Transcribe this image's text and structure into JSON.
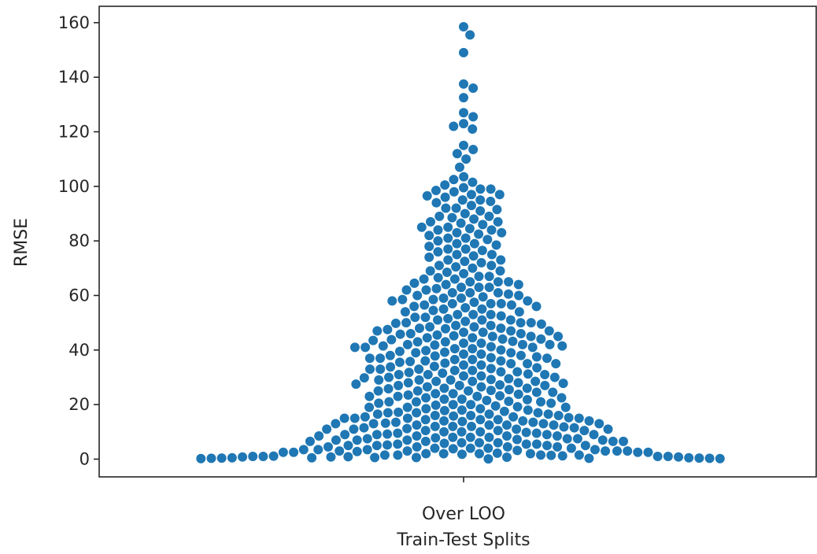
{
  "chart_data": {
    "type": "scatter",
    "subtype": "swarm",
    "title": "",
    "xlabel_lines": [
      "Over LOO",
      "Train-Test Splits"
    ],
    "ylabel": "RMSE",
    "categories": [
      "Over LOO"
    ],
    "y_ticks": [
      0,
      20,
      40,
      60,
      80,
      100,
      120,
      140,
      160
    ],
    "ylim": [
      -6.5,
      166
    ],
    "grid": false,
    "legend": "none",
    "color": "#1f77b4",
    "series": [
      {
        "category": "Over LOO",
        "values": [
          158.5,
          155.5,
          149.0,
          137.5,
          136.0,
          132.5,
          127.0,
          125.5,
          123.0,
          122.0,
          121.0,
          115.0,
          113.5,
          112.0,
          110.0,
          107.0,
          103.5,
          102.5,
          101.5,
          100.5,
          99.5,
          99.0,
          98.0,
          97.0,
          96.0,
          95.0,
          94.0,
          93.0,
          92.0,
          91.0,
          90.0,
          89.0,
          88.0,
          87.0,
          86.0,
          85.0,
          84.0,
          84.0,
          83.0,
          82.0,
          81.0,
          80.0,
          79.0,
          78.0,
          77.0,
          76.0,
          75.0,
          74.0,
          73.0,
          72.0,
          71.0,
          70.0,
          69.0,
          68.0,
          67.0,
          66.0,
          65.0,
          64.0,
          63.0,
          62.0,
          61.0,
          60.0,
          59.5,
          59.0,
          58.5,
          58.0,
          57.5,
          57.0,
          56.5,
          56.0,
          55.5,
          55.0,
          54.0,
          53.0,
          52.0,
          51.0,
          50.0,
          49.5,
          49.0,
          48.5,
          48.0,
          47.5,
          47.0,
          46.5,
          46.0,
          45.5,
          45.0,
          44.5,
          44.0,
          43.5,
          43.0,
          42.5,
          42.0,
          42.0,
          42.0,
          41.5,
          41.5,
          41.0,
          41.0,
          40.5,
          40.0,
          39.5,
          39.0,
          38.5,
          38.0,
          37.5,
          37.0,
          36.5,
          36.0,
          35.5,
          35.0,
          34.5,
          34.0,
          33.5,
          33.0,
          32.5,
          32.0,
          31.5,
          31.0,
          30.5,
          30.0,
          29.5,
          29.0,
          29.0,
          28.5,
          28.0,
          27.5,
          27.0,
          26.5,
          26.0,
          25.5,
          25.0,
          24.5,
          24.0,
          23.5,
          23.0,
          22.5,
          22.0,
          21.5,
          21.0,
          20.5,
          20.0,
          19.5,
          19.0,
          18.5,
          18.0,
          17.5,
          17.0,
          17.0,
          16.5,
          16.5,
          16.0,
          16.0,
          15.5,
          15.5,
          15.0,
          15.0,
          14.5,
          14.5,
          14.0,
          14.0,
          13.5,
          13.5,
          13.0,
          13.0,
          12.5,
          12.5,
          12.0,
          12.0,
          11.5,
          11.5,
          11.0,
          11.0,
          10.5,
          10.5,
          10.0,
          10.0,
          9.5,
          9.5,
          9.0,
          9.0,
          8.5,
          8.5,
          8.0,
          8.0,
          7.5,
          7.5,
          7.0,
          7.0,
          6.5,
          6.5,
          6.0,
          6.0,
          5.5,
          5.5,
          5.0,
          5.0,
          4.5,
          4.5,
          4.0,
          4.0,
          4.0,
          3.5,
          3.5,
          3.5,
          3.0,
          3.0,
          3.0,
          2.5,
          2.5,
          2.5,
          2.0,
          2.0,
          2.0,
          1.5,
          1.5,
          1.5,
          1.0,
          1.0,
          1.0,
          0.8,
          0.8,
          0.6,
          0.6,
          0.5,
          0.5,
          0.4,
          0.4,
          0.3,
          0.3,
          0.2,
          0.2,
          60.0,
          58.0,
          47.0,
          46.0,
          28.5,
          28.0,
          25.0,
          24.0,
          23.0,
          22.0,
          19.0,
          18.0,
          12.5,
          12.0,
          8.0,
          7.5,
          5.0,
          4.5,
          3.5,
          3.0,
          66.0,
          65.0,
          64.0,
          63.0,
          62.0,
          61.0,
          57.0,
          56.0,
          54.0,
          53.0,
          51.0,
          50.0,
          45.0,
          44.0,
          38.0,
          37.0,
          36.0,
          35.0,
          33.0,
          32.0,
          31.0,
          30.0,
          27.0,
          26.0,
          21.0,
          20.0,
          16.0,
          15.0,
          14.0,
          13.0,
          11.0,
          10.0,
          9.0,
          8.5,
          7.0,
          6.5,
          6.0,
          5.5,
          4.0,
          2.0,
          99.0,
          98.5,
          97.0,
          96.5,
          95.0,
          94.5,
          92.0,
          91.5,
          89.0,
          88.5,
          87.0,
          86.5,
          85.0,
          84.5,
          83.0,
          82.5,
          81.0,
          80.5,
          79.0,
          78.5,
          77.0,
          76.5,
          75.0,
          74.5,
          73.0,
          72.5,
          71.0,
          70.5,
          69.0,
          68.5,
          67.0,
          66.5,
          65.0,
          64.5,
          63.0,
          62.5,
          61.0,
          60.5,
          59.0,
          58.5,
          57.0,
          56.5,
          55.0,
          54.5,
          53.0,
          52.5,
          51.0,
          50.5,
          49.0,
          48.5,
          47.0,
          46.5,
          45.0,
          44.5,
          43.0,
          42.5,
          41.0,
          40.5,
          39.0,
          38.5,
          37.0,
          36.5,
          35.0,
          34.5,
          33.0,
          32.5,
          31.0,
          30.5,
          29.0,
          28.5,
          27.0,
          26.5,
          25.0,
          24.5,
          23.0,
          22.5,
          21.0,
          20.5,
          19.0,
          18.5,
          17.0,
          16.5,
          15.0,
          14.5,
          13.0,
          12.5,
          11.0,
          10.5,
          9.0,
          8.5,
          7.0,
          6.5,
          5.0,
          4.5,
          3.0,
          2.5,
          1.5,
          1.2,
          1.0,
          0.8,
          52.0,
          51.5,
          50.0,
          49.8,
          48.0,
          47.8,
          45.8,
          45.2,
          43.8,
          43.2,
          41.8,
          41.2,
          39.8,
          39.2,
          37.8,
          37.2,
          35.8,
          35.2,
          33.8,
          33.2,
          31.8,
          31.2,
          29.8,
          29.2,
          27.8,
          27.2,
          25.8,
          25.2,
          23.8,
          23.2,
          21.8,
          21.2,
          19.8,
          19.2,
          17.8,
          17.2,
          15.8,
          15.2,
          13.8,
          13.2,
          11.8,
          11.2,
          9.8,
          9.2,
          7.8,
          7.2,
          5.8,
          5.2,
          3.8,
          3.2,
          2.8,
          2.2,
          1.8,
          1.4,
          1.1,
          0.9,
          0.7,
          0.5,
          0.3,
          0.1
        ]
      }
    ]
  }
}
